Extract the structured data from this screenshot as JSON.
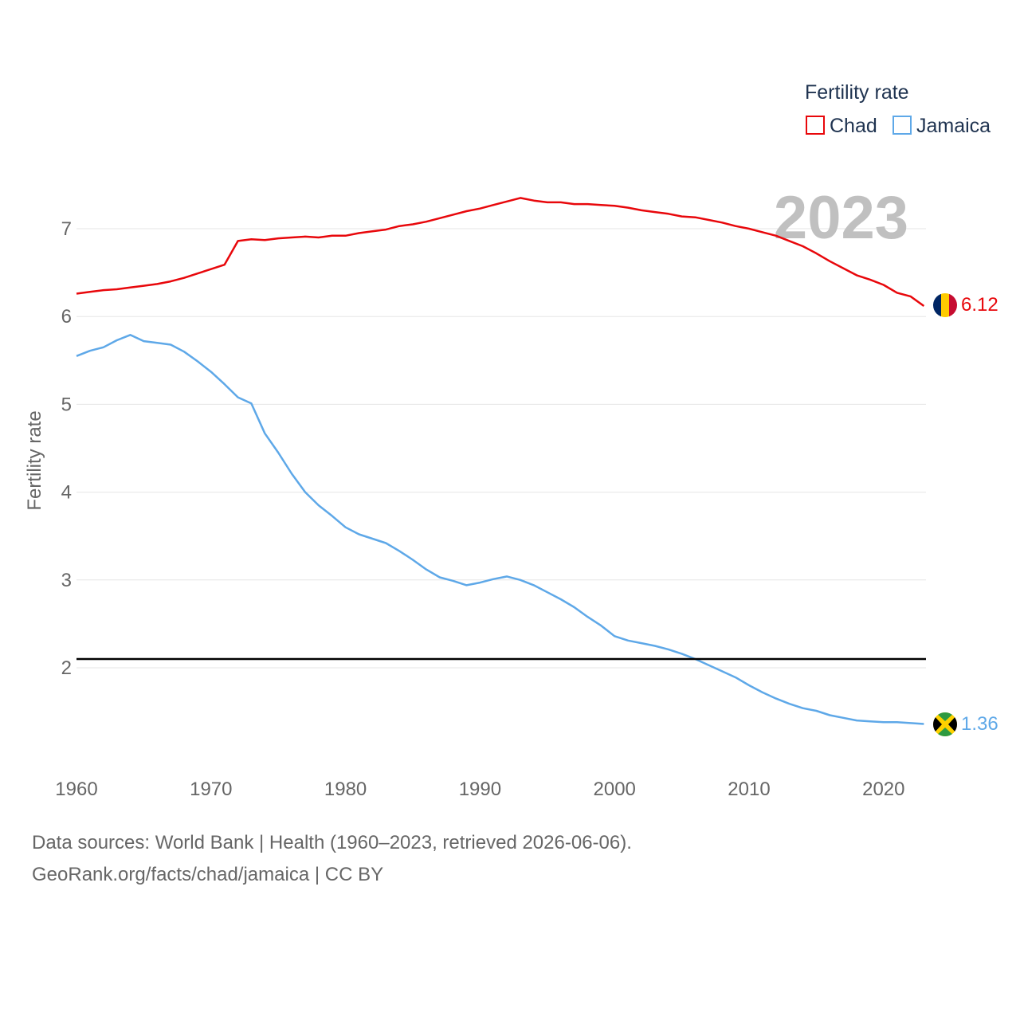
{
  "chart_data": {
    "type": "line",
    "title": "",
    "big_year_label": "2023",
    "ylabel": "Fertility rate",
    "xlabel": "",
    "xlim": [
      1960,
      2023
    ],
    "ylim": [
      0.9,
      7.7
    ],
    "x_ticks": [
      1960,
      1970,
      1980,
      1990,
      2000,
      2010,
      2020
    ],
    "y_ticks": [
      2,
      3,
      4,
      5,
      6,
      7
    ],
    "reference_line": {
      "value": 2.1,
      "color": "#000000"
    },
    "legend": {
      "title": "Fertility rate",
      "placement": "top-right"
    },
    "x": [
      1960,
      1961,
      1962,
      1963,
      1964,
      1965,
      1966,
      1967,
      1968,
      1969,
      1970,
      1971,
      1972,
      1973,
      1974,
      1975,
      1976,
      1977,
      1978,
      1979,
      1980,
      1981,
      1982,
      1983,
      1984,
      1985,
      1986,
      1987,
      1988,
      1989,
      1990,
      1991,
      1992,
      1993,
      1994,
      1995,
      1996,
      1997,
      1998,
      1999,
      2000,
      2001,
      2002,
      2003,
      2004,
      2005,
      2006,
      2007,
      2008,
      2009,
      2010,
      2011,
      2012,
      2013,
      2014,
      2015,
      2016,
      2017,
      2018,
      2019,
      2020,
      2021,
      2022,
      2023
    ],
    "series": [
      {
        "name": "Chad",
        "color": "#e8070b",
        "end_label": "6.12",
        "flag": "chad",
        "values": [
          6.26,
          6.28,
          6.3,
          6.31,
          6.33,
          6.35,
          6.37,
          6.4,
          6.44,
          6.49,
          6.54,
          6.59,
          6.86,
          6.88,
          6.87,
          6.89,
          6.9,
          6.91,
          6.9,
          6.92,
          6.92,
          6.95,
          6.97,
          6.99,
          7.03,
          7.05,
          7.08,
          7.12,
          7.16,
          7.2,
          7.23,
          7.27,
          7.31,
          7.35,
          7.32,
          7.3,
          7.3,
          7.28,
          7.28,
          7.27,
          7.26,
          7.24,
          7.21,
          7.19,
          7.17,
          7.14,
          7.13,
          7.1,
          7.07,
          7.03,
          7.0,
          6.96,
          6.92,
          6.86,
          6.8,
          6.72,
          6.63,
          6.55,
          6.47,
          6.42,
          6.36,
          6.27,
          6.23,
          6.12
        ]
      },
      {
        "name": "Jamaica",
        "color": "#5ea8e8",
        "end_label": "1.36",
        "flag": "jamaica",
        "values": [
          5.55,
          5.61,
          5.65,
          5.73,
          5.79,
          5.72,
          5.7,
          5.68,
          5.6,
          5.49,
          5.37,
          5.23,
          5.08,
          5.01,
          4.67,
          4.45,
          4.21,
          4.0,
          3.85,
          3.73,
          3.6,
          3.52,
          3.47,
          3.42,
          3.33,
          3.23,
          3.12,
          3.03,
          2.99,
          2.94,
          2.97,
          3.01,
          3.04,
          3.0,
          2.94,
          2.86,
          2.78,
          2.69,
          2.58,
          2.48,
          2.36,
          2.31,
          2.28,
          2.25,
          2.21,
          2.16,
          2.1,
          2.03,
          1.96,
          1.89,
          1.8,
          1.72,
          1.65,
          1.59,
          1.54,
          1.51,
          1.46,
          1.43,
          1.4,
          1.39,
          1.38,
          1.38,
          1.37,
          1.36
        ]
      }
    ]
  },
  "footer": {
    "sources": "Data sources: World Bank | Health (1960–2023, retrieved 2026-06-06).",
    "credit": "GeoRank.org/facts/chad/jamaica | CC BY"
  },
  "colors": {
    "grid": "#e6e6e6",
    "tick_text": "#666666",
    "legend_text": "#1f3350",
    "year_label": "#c0c0c0",
    "jamaica_flag_green": "#2e9a41",
    "jamaica_flag_gold": "#fed100",
    "chad_flag_blue": "#002664",
    "chad_flag_yellow": "#fecb00",
    "chad_flag_red": "#c60c30"
  }
}
